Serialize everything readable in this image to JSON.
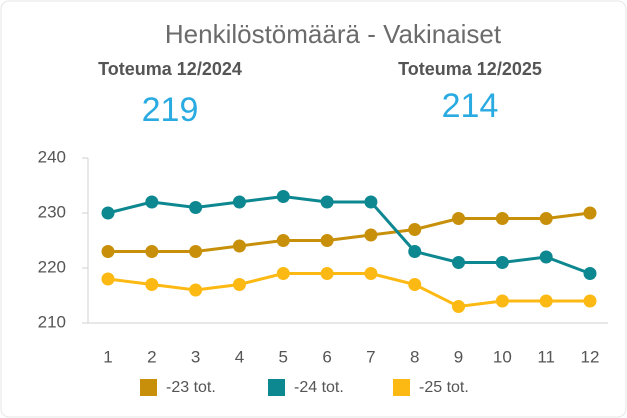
{
  "header": {
    "title": "Henkilöstömäärä - Vakinaiset"
  },
  "kpis": [
    {
      "label": "Toteuma 12/2024",
      "value": 219
    },
    {
      "label": "Toteuma 12/2025",
      "value": 214
    }
  ],
  "chart_data": {
    "type": "line",
    "x": [
      1,
      2,
      3,
      4,
      5,
      6,
      7,
      8,
      9,
      10,
      11,
      12
    ],
    "xlim": [
      1,
      12
    ],
    "ylim": [
      210,
      240
    ],
    "yticks": [
      210,
      220,
      230,
      240
    ],
    "grid": false,
    "legend": "bottom",
    "series": [
      {
        "name": "-23 tot.",
        "color": "#c8900a",
        "values": [
          223,
          223,
          223,
          224,
          225,
          225,
          226,
          227,
          229,
          229,
          229,
          230
        ]
      },
      {
        "name": "-24 tot.",
        "color": "#0d8790",
        "values": [
          230,
          232,
          231,
          232,
          233,
          232,
          232,
          223,
          221,
          221,
          222,
          219
        ]
      },
      {
        "name": "-25 tot.",
        "color": "#fdb913",
        "values": [
          218,
          217,
          216,
          217,
          219,
          219,
          219,
          217,
          213,
          214,
          214,
          214
        ]
      }
    ]
  }
}
